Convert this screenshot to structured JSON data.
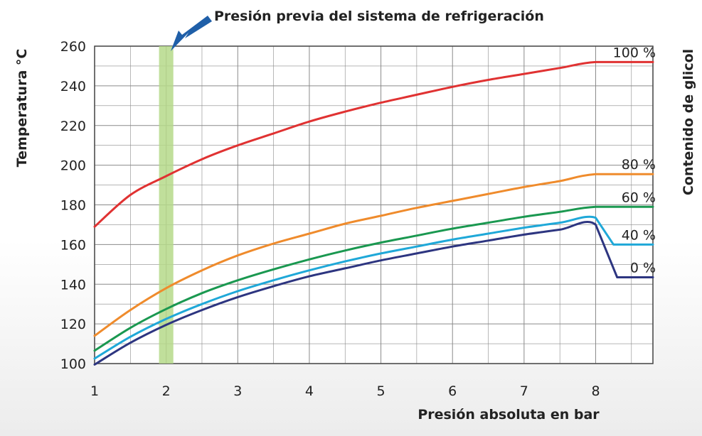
{
  "chart_data": {
    "type": "line",
    "title": "",
    "xlabel": "Presión absoluta en bar",
    "ylabel": "Temperatura °C",
    "legend_title": "Contenido de glicol",
    "xlim": [
      1,
      8.8
    ],
    "ylim": [
      100,
      260
    ],
    "xticks": [
      1,
      2,
      3,
      4,
      5,
      6,
      7,
      8
    ],
    "yticks": [
      100,
      120,
      140,
      160,
      180,
      200,
      220,
      240,
      260
    ],
    "grid": true,
    "annotation": {
      "text": "Presión previa del sistema de refrigeración",
      "band_x": [
        1.9,
        2.1
      ],
      "band_color": "#b5d98a",
      "arrow_color": "#1f5fa8"
    },
    "series": [
      {
        "name": "100 %",
        "color": "#e03232",
        "x": [
          1,
          1.5,
          2,
          2.5,
          3,
          3.5,
          4,
          4.5,
          5,
          5.5,
          6,
          6.5,
          7,
          7.5,
          8,
          8.8
        ],
        "y": [
          169,
          185,
          194.5,
          203,
          210,
          216,
          222,
          227,
          231.5,
          235.5,
          239.5,
          243,
          246,
          249,
          252,
          252
        ]
      },
      {
        "name": "80 %",
        "color": "#ef8b2c",
        "x": [
          1,
          1.5,
          2,
          2.5,
          3,
          3.5,
          4,
          4.5,
          5,
          5.5,
          6,
          6.5,
          7,
          7.5,
          8,
          8.8
        ],
        "y": [
          114,
          127,
          138,
          147,
          154.5,
          160.5,
          165.5,
          170.5,
          174.5,
          178.5,
          182,
          185.5,
          189,
          192,
          195.5,
          195.5
        ]
      },
      {
        "name": "60 %",
        "color": "#1a9850",
        "x": [
          1,
          1.5,
          2,
          2.5,
          3,
          3.5,
          4,
          4.5,
          5,
          5.5,
          6,
          6.5,
          7,
          7.5,
          8,
          8.8
        ],
        "y": [
          106.5,
          118,
          127.5,
          135.5,
          142,
          147.5,
          152.5,
          157,
          161,
          164.5,
          168,
          171,
          174,
          176.5,
          179,
          179
        ]
      },
      {
        "name": "40 %",
        "color": "#1fa8d8",
        "x": [
          1,
          1.5,
          2,
          2.5,
          3,
          3.5,
          4,
          4.5,
          5,
          5.5,
          6,
          6.5,
          7,
          7.5,
          8,
          8.25,
          8.8
        ],
        "y": [
          102.5,
          113.5,
          122.5,
          130,
          136.5,
          142,
          147,
          151.5,
          155.5,
          159,
          162.5,
          165.5,
          168.5,
          171,
          173.5,
          160,
          160
        ]
      },
      {
        "name": "0 %",
        "color": "#2d3580",
        "x": [
          1,
          1.5,
          2,
          2.5,
          3,
          3.5,
          4,
          4.5,
          5,
          5.5,
          6,
          6.5,
          7,
          7.5,
          8,
          8.3,
          8.8
        ],
        "y": [
          99.5,
          110.5,
          119.5,
          127,
          133.5,
          139,
          144,
          148,
          152,
          155.5,
          159,
          162,
          165,
          167.5,
          170,
          143.5,
          143.5
        ]
      }
    ]
  }
}
